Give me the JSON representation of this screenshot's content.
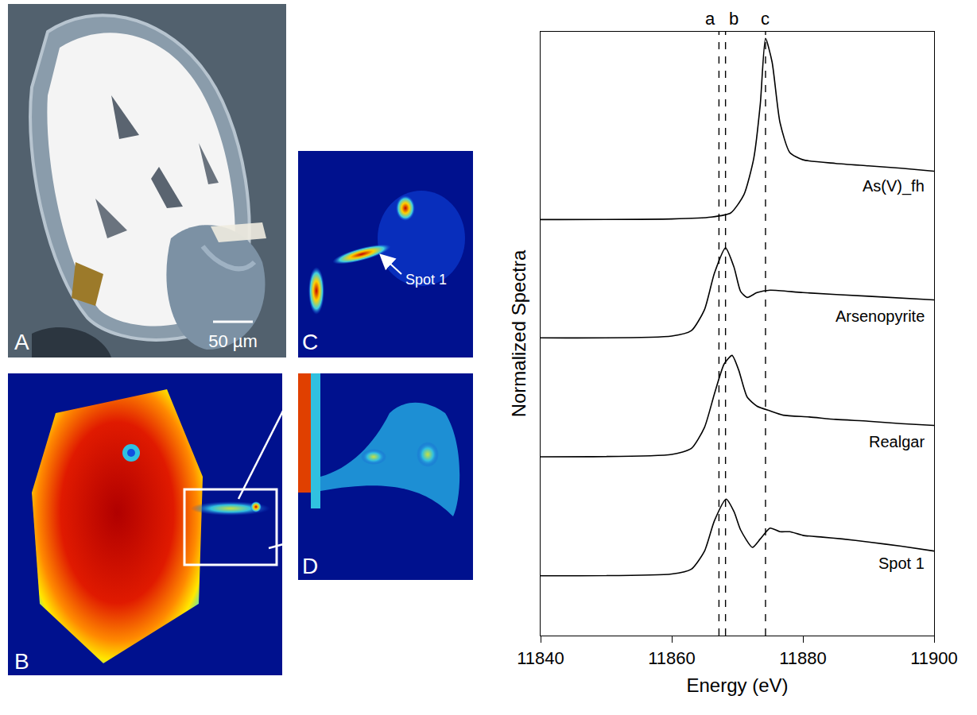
{
  "chart_data": {
    "type": "line",
    "xlabel": "Energy (eV)",
    "ylabel": "Normalized Spectra",
    "xlim": [
      11840,
      11900
    ],
    "xticks": [
      11840,
      11860,
      11880,
      11900
    ],
    "ylim": [
      0,
      10
    ],
    "tick_labels": "x",
    "grid": false,
    "vlines": [
      {
        "x": 11867.2,
        "label": "a"
      },
      {
        "x": 11868.2,
        "label": "b"
      },
      {
        "x": 11874.3,
        "label": "c"
      }
    ],
    "series": [
      {
        "name": "As(V)_fh",
        "color": "#000000",
        "line_style": "solid",
        "x": [
          11840,
          11860,
          11866,
          11869,
          11871,
          11872.5,
          11873.5,
          11874.3,
          11875.3,
          11876.5,
          11878,
          11880,
          11885,
          11890,
          11895,
          11900
        ],
        "values": [
          6.89,
          6.9,
          6.93,
          7.0,
          7.3,
          7.9,
          8.8,
          9.89,
          9.5,
          8.5,
          8.0,
          7.88,
          7.82,
          7.78,
          7.74,
          7.69
        ]
      },
      {
        "name": "Arsenopyrite",
        "color": "#000000",
        "line_style": "solid",
        "x": [
          11840,
          11860,
          11863,
          11865,
          11866.5,
          11868.2,
          11869.5,
          11870.5,
          11871.5,
          11873,
          11875,
          11880,
          11890,
          11900
        ],
        "values": [
          4.93,
          4.96,
          5.05,
          5.4,
          6.0,
          6.42,
          6.1,
          5.7,
          5.6,
          5.68,
          5.72,
          5.68,
          5.62,
          5.56
        ]
      },
      {
        "name": "Realgar",
        "color": "#000000",
        "line_style": "solid",
        "x": [
          11840,
          11860,
          11863,
          11865,
          11866.5,
          11868,
          11869.2,
          11870.2,
          11871.5,
          11873,
          11875,
          11877,
          11881,
          11885,
          11890,
          11895,
          11900
        ],
        "values": [
          2.96,
          3.0,
          3.1,
          3.45,
          4.0,
          4.5,
          4.64,
          4.4,
          3.95,
          3.8,
          3.72,
          3.65,
          3.62,
          3.58,
          3.55,
          3.51,
          3.48
        ]
      },
      {
        "name": "Spot 1",
        "color": "#000000",
        "line_style": "solid",
        "x": [
          11840,
          11860,
          11863,
          11865,
          11866.5,
          11868.3,
          11869.5,
          11870.5,
          11872.3,
          11873.5,
          11875,
          11876.5,
          11878,
          11880,
          11883,
          11886,
          11890,
          11895,
          11900
        ],
        "values": [
          0.99,
          1.02,
          1.1,
          1.4,
          1.9,
          2.26,
          2.05,
          1.75,
          1.46,
          1.6,
          1.78,
          1.72,
          1.72,
          1.66,
          1.63,
          1.6,
          1.55,
          1.48,
          1.4
        ]
      }
    ]
  },
  "image_panels": {
    "A": {
      "label": "A",
      "scale_bar": "50 µm"
    },
    "B": {
      "label": "B"
    },
    "C": {
      "label": "C",
      "marker_label": "Spot 1"
    },
    "D": {
      "label": "D"
    }
  }
}
